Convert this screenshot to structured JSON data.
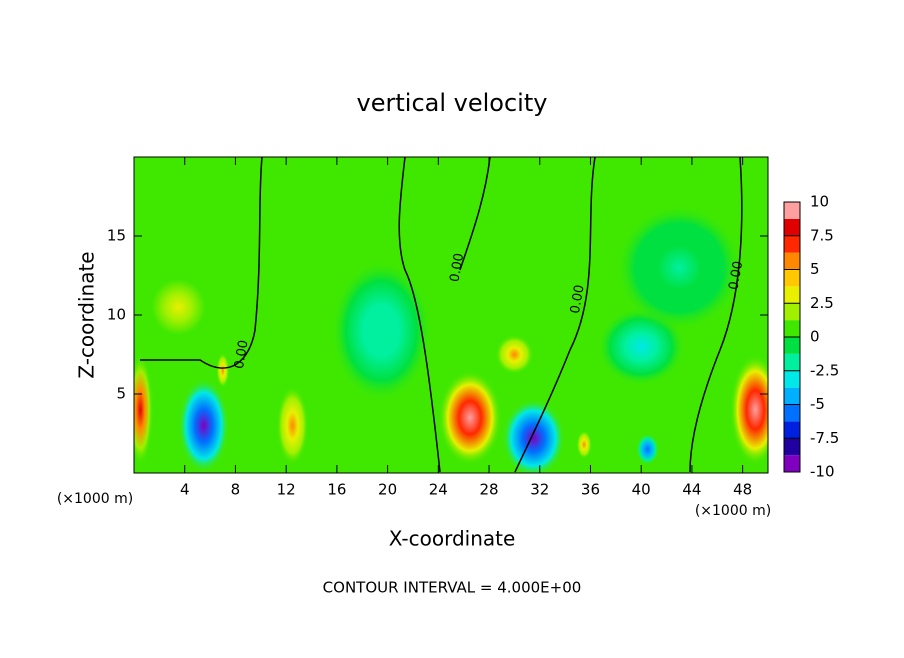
{
  "chart_data": {
    "type": "contour",
    "title": "vertical velocity",
    "x_label": "X-coordinate",
    "y_label": "Z-coordinate",
    "x_unit_label": "(×1000 m)",
    "x_unit_label_right": "(×1000 m)",
    "footnote": "CONTOUR INTERVAL = 4.000E+00",
    "xlim": [
      0,
      50
    ],
    "ylim": [
      0,
      20
    ],
    "xticks": [
      4,
      8,
      12,
      16,
      20,
      24,
      28,
      32,
      36,
      40,
      44,
      48
    ],
    "yticks": [
      5,
      10,
      15
    ],
    "background_value": 0,
    "colorbar_lim": [
      -10,
      10
    ],
    "colorbar_ticks": [
      10,
      7.5,
      5,
      2.5,
      0,
      -2.5,
      -5,
      -7.5,
      -10
    ],
    "colormap": [
      "#8000c0",
      "#2000a0",
      "#0020e0",
      "#0070ff",
      "#00b0ff",
      "#00e8e8",
      "#00f0a0",
      "#00e040",
      "#40e800",
      "#a0f000",
      "#e8f000",
      "#ffc800",
      "#ff8800",
      "#ff2800",
      "#e00000",
      "#ffa0a0"
    ],
    "features": [
      {
        "x": 0.5,
        "z": 4,
        "w": 2,
        "h": 7,
        "value": 8
      },
      {
        "x": 5.5,
        "z": 3,
        "w": 4,
        "h": 6,
        "value": -9
      },
      {
        "x": 26.5,
        "z": 3.5,
        "w": 5,
        "h": 6,
        "value": 10
      },
      {
        "x": 31.5,
        "z": 2.2,
        "w": 5,
        "h": 5,
        "value": -9
      },
      {
        "x": 49,
        "z": 4,
        "w": 4,
        "h": 7,
        "value": 10
      },
      {
        "x": 3.5,
        "z": 10.5,
        "w": 6,
        "h": 5,
        "value": 3
      },
      {
        "x": 12.5,
        "z": 3,
        "w": 2.5,
        "h": 5,
        "value": 5
      },
      {
        "x": 30,
        "z": 7.5,
        "w": 3,
        "h": 2.5,
        "value": 5
      },
      {
        "x": 40,
        "z": 8,
        "w": 7,
        "h": 5,
        "value": -3.5
      },
      {
        "x": 40.5,
        "z": 1.5,
        "w": 1.8,
        "h": 2,
        "value": -6
      },
      {
        "x": 35.5,
        "z": 1.8,
        "w": 1.2,
        "h": 1.8,
        "value": 5
      },
      {
        "x": 7,
        "z": 6.5,
        "w": 1,
        "h": 2.2,
        "value": 5
      },
      {
        "x": 19.5,
        "z": 9,
        "w": 8,
        "h": 9,
        "value": -2
      },
      {
        "x": 43,
        "z": 13,
        "w": 10,
        "h": 8,
        "value": -1.5
      }
    ],
    "contour_labels": [
      {
        "text": "0.00",
        "x": 8.5,
        "z": 7.5
      },
      {
        "text": "0.00",
        "x": 25.5,
        "z": 13
      },
      {
        "text": "0.00",
        "x": 35,
        "z": 11
      },
      {
        "text": "0.00",
        "x": 47.5,
        "z": 12.5
      }
    ]
  }
}
